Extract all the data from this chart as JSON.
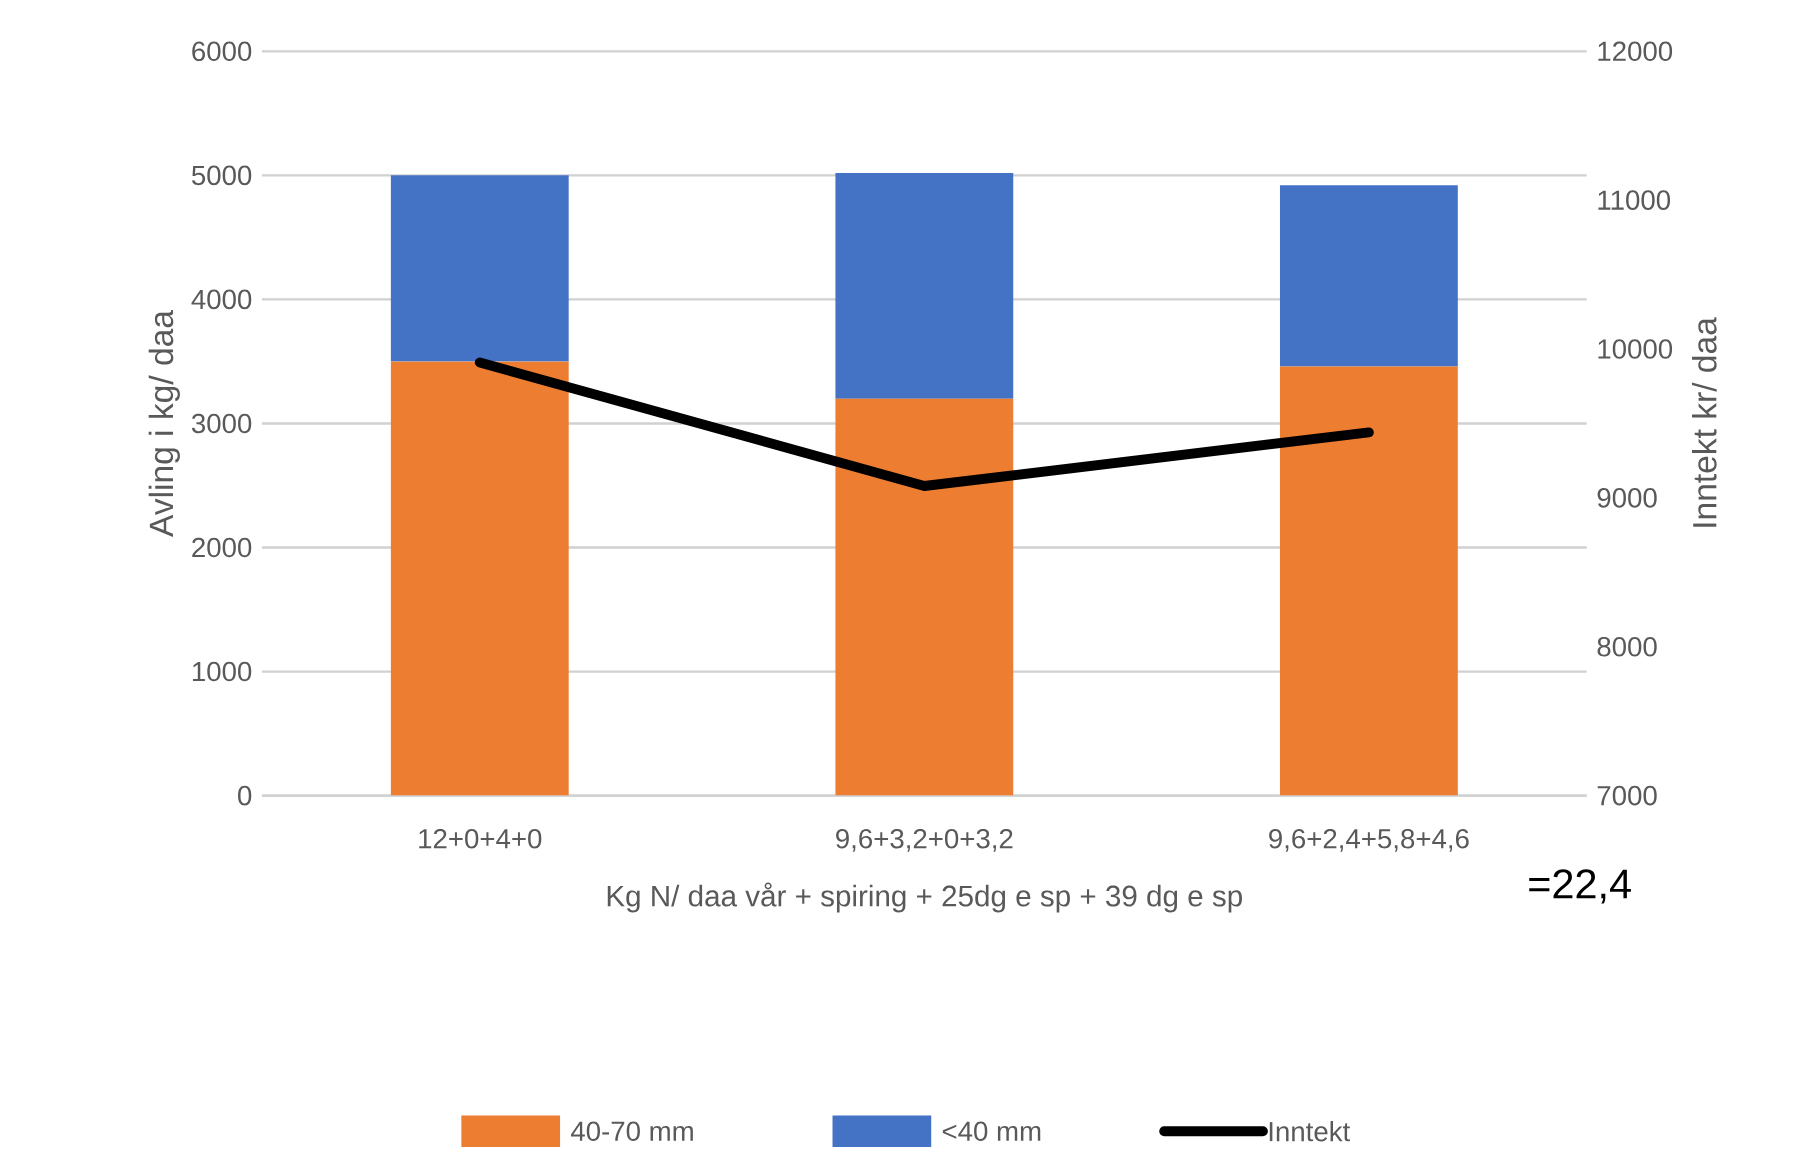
{
  "chart_data": {
    "type": "bar",
    "stacked": true,
    "categories": [
      "12+0+4+0",
      "9,6+3,2+0+3,2",
      "9,6+2,4+5,8+4,6"
    ],
    "series": [
      {
        "name": "40-70 mm",
        "color": "#ed7d31",
        "values": [
          3500,
          3200,
          3460
        ]
      },
      {
        "name": "<40 mm",
        "color": "#4472c4",
        "values": [
          1500,
          1820,
          1460
        ]
      },
      {
        "name": "Inntekt",
        "color": "#000000",
        "type": "line",
        "axis": "y2",
        "values": [
          9910,
          9080,
          9440
        ]
      }
    ],
    "xlabel": "Kg N/ daa vår + spiring + 25dg e sp + 39 dg e sp",
    "ylabel": "Avling i kg/ daa",
    "y2label": "Inntekt kr/ daa",
    "ylim": [
      0,
      6000
    ],
    "yticks": [
      0,
      1000,
      2000,
      3000,
      4000,
      5000,
      6000
    ],
    "y2lim": [
      7000,
      12000
    ],
    "y2ticks": [
      7000,
      8000,
      9000,
      10000,
      11000,
      12000
    ],
    "grid": "y",
    "legend": "bottom",
    "marker": "none",
    "line_style": "solid",
    "annotations": [
      "=22,4"
    ]
  }
}
